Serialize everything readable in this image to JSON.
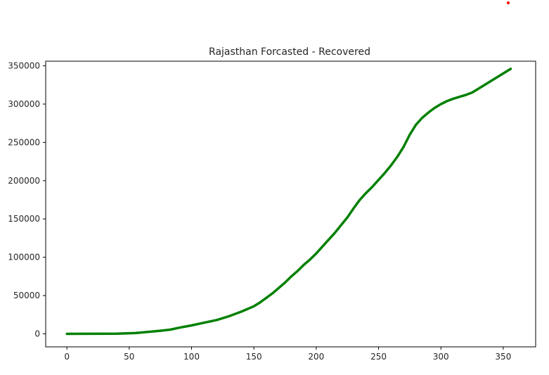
{
  "chart_data": {
    "type": "line",
    "title": "Rajasthan Forcasted - Recovered",
    "xlabel": "",
    "ylabel": "",
    "xlim": [
      -17,
      376
    ],
    "ylim": [
      -17000,
      356000
    ],
    "xticks": [
      0,
      50,
      100,
      150,
      200,
      250,
      300,
      350
    ],
    "yticks": [
      0,
      50000,
      100000,
      150000,
      200000,
      250000,
      300000,
      350000
    ],
    "grid": false,
    "legend": "none",
    "series": [
      {
        "color": "#008000",
        "x": [
          0,
          20,
          40,
          55,
          65,
          75,
          83,
          90,
          100,
          110,
          120,
          130,
          140,
          150,
          155,
          160,
          165,
          170,
          175,
          180,
          185,
          190,
          195,
          200,
          205,
          210,
          215,
          220,
          225,
          230,
          235,
          240,
          245,
          250,
          255,
          260,
          265,
          270,
          275,
          280,
          285,
          290,
          295,
          300,
          305,
          310,
          315,
          320,
          325,
          330,
          335,
          340,
          345,
          350,
          356
        ],
        "y": [
          0,
          100,
          300,
          1000,
          2500,
          4000,
          5500,
          8000,
          11000,
          14500,
          18000,
          23000,
          29000,
          36000,
          41000,
          47000,
          53000,
          60000,
          67000,
          75000,
          82000,
          90000,
          97000,
          105000,
          114000,
          123000,
          132000,
          142000,
          152000,
          164000,
          175000,
          184000,
          192000,
          201000,
          210000,
          220000,
          231000,
          244000,
          260000,
          273000,
          282000,
          289000,
          295000,
          300000,
          304000,
          307000,
          309500,
          312000,
          315000,
          320000,
          325000,
          330000,
          335000,
          340000,
          346000
        ]
      }
    ]
  }
}
